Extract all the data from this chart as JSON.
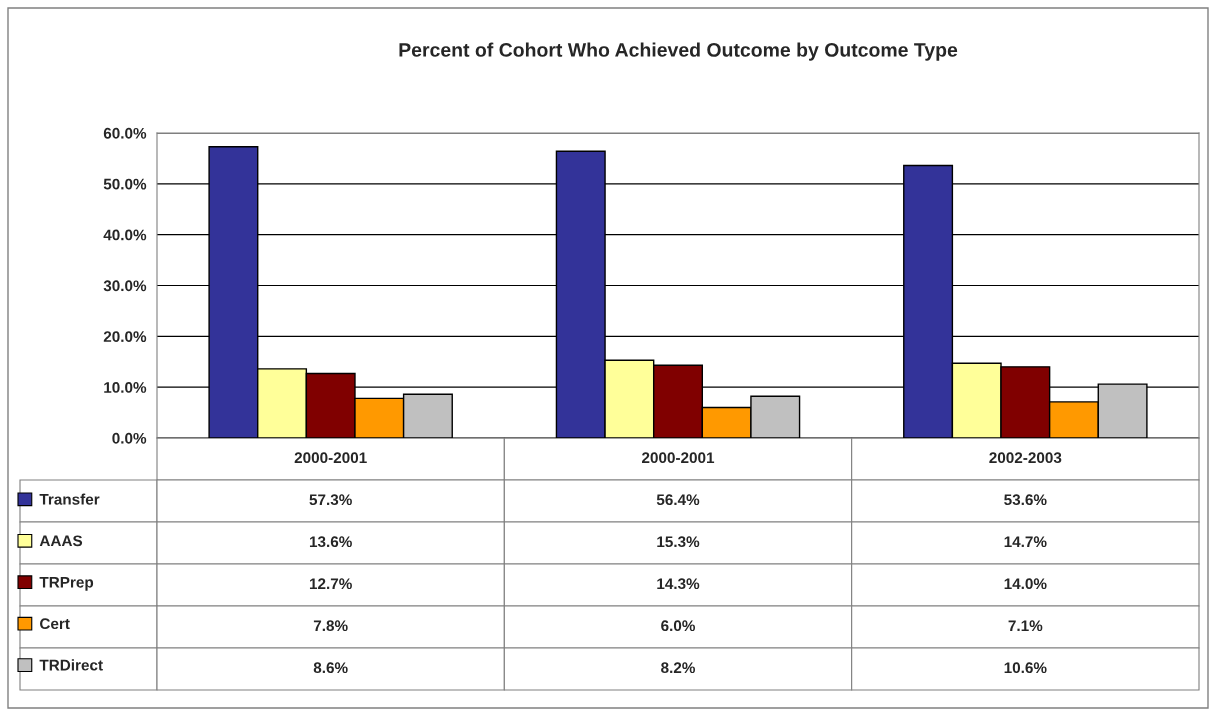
{
  "chart_data": {
    "type": "bar",
    "title": "Percent of Cohort Who Achieved Outcome by Outcome Type",
    "categories": [
      "2000-2001",
      "2000-2001",
      "2002-2003"
    ],
    "series": [
      {
        "name": "Transfer",
        "color": "#333399",
        "values": [
          57.3,
          56.4,
          53.6
        ],
        "value_labels": [
          "57.3%",
          "56.4%",
          "53.6%"
        ]
      },
      {
        "name": "AAAS",
        "color": "#ffff99",
        "values": [
          13.6,
          15.3,
          14.7
        ],
        "value_labels": [
          "13.6%",
          "15.3%",
          "14.7%"
        ]
      },
      {
        "name": "TRPrep",
        "color": "#800000",
        "values": [
          12.7,
          14.3,
          14.0
        ],
        "value_labels": [
          "12.7%",
          "14.3%",
          "14.0%"
        ]
      },
      {
        "name": "Cert",
        "color": "#ff9900",
        "values": [
          7.8,
          6.0,
          7.1
        ],
        "value_labels": [
          "7.8%",
          "6.0%",
          "7.1%"
        ]
      },
      {
        "name": "TRDirect",
        "color": "#c0c0c0",
        "values": [
          8.6,
          8.2,
          10.6
        ],
        "value_labels": [
          "8.6%",
          "8.2%",
          "10.6%"
        ]
      }
    ],
    "ylim": [
      0,
      60
    ],
    "yticks": [
      {
        "value": 0,
        "label": "0.0%"
      },
      {
        "value": 10,
        "label": "10.0%"
      },
      {
        "value": 20,
        "label": "20.0%"
      },
      {
        "value": 30,
        "label": "30.0%"
      },
      {
        "value": 40,
        "label": "40.0%"
      },
      {
        "value": 50,
        "label": "50.0%"
      },
      {
        "value": 60,
        "label": "60.0%"
      }
    ],
    "grid": "y",
    "legend": "bottom left"
  }
}
